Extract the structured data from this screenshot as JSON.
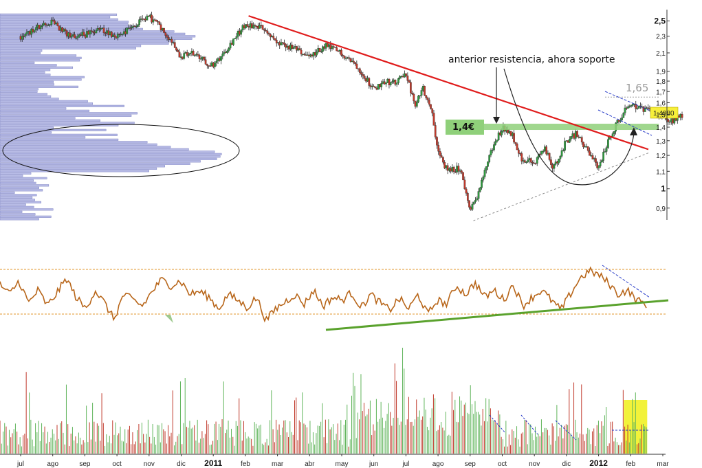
{
  "chart_data": [
    {
      "type": "candlestick",
      "panel": "price",
      "y_scale": "log",
      "ylim": [
        0.85,
        2.62
      ],
      "y_ticks": [
        "2,5",
        "2,3",
        "2,1",
        "1,9",
        "1,8",
        "1,7",
        "1,6",
        "1,5",
        "1,4",
        "1,3",
        "1,2",
        "1,1",
        "1",
        "0,9"
      ],
      "y_tick_values": [
        2.5,
        2.3,
        2.1,
        1.9,
        1.8,
        1.7,
        1.6,
        1.5,
        1.4,
        1.3,
        1.2,
        1.1,
        1.0,
        0.9
      ],
      "x_ticks": [
        "jul",
        "ago",
        "sep",
        "oct",
        "nov",
        "dic",
        "2011",
        "feb",
        "mar",
        "abr",
        "may",
        "jun",
        "jul",
        "ago",
        "sep",
        "oct",
        "nov",
        "dic",
        "2012",
        "feb",
        "mar"
      ],
      "x_tick_month_index": [
        0,
        1,
        2,
        3,
        4,
        5,
        6,
        7,
        8,
        9,
        10,
        11,
        12,
        13,
        14,
        15,
        16,
        17,
        18,
        19,
        20
      ],
      "close_anchors": {
        "month_index": [
          0,
          0.5,
          1,
          1.5,
          2,
          2.5,
          3,
          3.5,
          4,
          4.3,
          4.7,
          5,
          5.3,
          6,
          6.7,
          7,
          7.6,
          8,
          8.5,
          9,
          9.5,
          10,
          10.5,
          11,
          11.3,
          11.7,
          12,
          12.3,
          12.5,
          12.8,
          13,
          13.3,
          13.7,
          14,
          14.3,
          14.6,
          15,
          15.3,
          15.6,
          16,
          16.3,
          16.6,
          17,
          17.3,
          17.6,
          18,
          18.3,
          18.6,
          19,
          19.3,
          19.6,
          20,
          20.3,
          20.6
        ],
        "close": [
          2.3,
          2.4,
          2.48,
          2.3,
          2.32,
          2.38,
          2.3,
          2.43,
          2.55,
          2.45,
          2.25,
          2.05,
          2.1,
          1.95,
          2.3,
          2.45,
          2.4,
          2.2,
          2.15,
          2.05,
          2.18,
          2.1,
          1.95,
          1.72,
          1.8,
          1.78,
          1.88,
          1.55,
          1.75,
          1.55,
          1.22,
          1.1,
          1.12,
          0.88,
          1.0,
          1.2,
          1.4,
          1.35,
          1.18,
          1.15,
          1.25,
          1.12,
          1.3,
          1.35,
          1.25,
          1.12,
          1.3,
          1.45,
          1.6,
          1.55,
          1.52,
          1.48,
          1.45,
          1.498
        ]
      },
      "price_label": "1,4980",
      "annotations": {
        "resistance_text": "anterior resistencia, ahora soporte",
        "support_label": "1,4€",
        "level_label": "1,65"
      },
      "lines": {
        "downtrend_red": {
          "from": [
            7.1,
            2.57
          ],
          "to": [
            19.55,
            1.24
          ]
        },
        "support_green_level": 1.4,
        "level_165_dotted": 1.65,
        "uptrend_dotted": {
          "from": [
            14.1,
            0.84
          ],
          "to": [
            19.6,
            1.22
          ]
        }
      },
      "volume_profile": true
    },
    {
      "type": "line",
      "panel": "oscillator",
      "series": [
        {
          "values": [
            0.72,
            0.55,
            0.78,
            0.4,
            0.62,
            0.35,
            0.58,
            0.82,
            0.5,
            0.3,
            0.62,
            0.4,
            0.12,
            0.55,
            0.45,
            0.35,
            0.6,
            0.8,
            0.7,
            0.78,
            0.55,
            0.6,
            0.5,
            0.3,
            0.55,
            0.45,
            0.32,
            0.5,
            0.1,
            0.3,
            0.42,
            0.55,
            0.38,
            0.62,
            0.35,
            0.5,
            0.45,
            0.58,
            0.32,
            0.55,
            0.4,
            0.28,
            0.48,
            0.3,
            0.55,
            0.2,
            0.45,
            0.38,
            0.7,
            0.55,
            0.75,
            0.5,
            0.62,
            0.45,
            0.72,
            0.35,
            0.5,
            0.62,
            0.45,
            0.28,
            0.55,
            0.82,
            0.95,
            0.88,
            0.75,
            0.55,
            0.62,
            0.45,
            0.38
          ]
        }
      ],
      "overbought_level": "upper",
      "oversold_level": "lower"
    },
    {
      "type": "bar",
      "panel": "volume",
      "highlight_months": [
        19,
        19.3
      ]
    }
  ]
}
